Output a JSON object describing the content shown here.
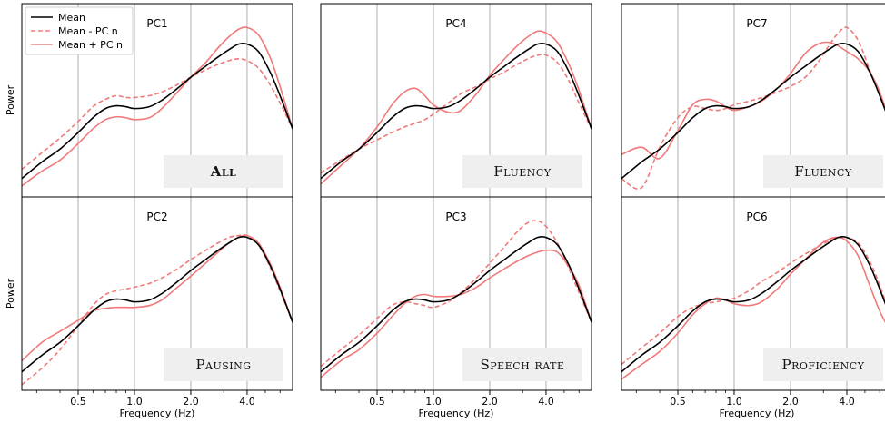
{
  "chart_data": {
    "type": "line",
    "xlabel": "Frequency (Hz)",
    "ylabel": "Power",
    "x_ticks": [
      {
        "value": 0.5,
        "label": "0.5"
      },
      {
        "value": 1.0,
        "label": "1.0"
      },
      {
        "value": 2.0,
        "label": "2.0"
      },
      {
        "value": 4.0,
        "label": "4.0"
      }
    ],
    "x_scale": "log2",
    "xlim": [
      0.25,
      7.0
    ],
    "ylim": [
      0,
      1
    ],
    "grid": "vertical",
    "legend": {
      "position": "top-left",
      "entries": [
        {
          "label": "Mean",
          "color": "#000000",
          "style": "solid"
        },
        {
          "label": "Mean - PC n",
          "color": "#f08080",
          "style": "dashed"
        },
        {
          "label": "Mean + PC n",
          "color": "#f08080",
          "style": "solid"
        }
      ]
    },
    "colors": {
      "mean": "#000000",
      "pc": "#f07a7a",
      "grid": "#b0b0b0",
      "category_box": "#efefef"
    },
    "x": [
      0.25,
      0.32,
      0.4,
      0.5,
      0.6,
      0.7,
      0.8,
      0.9,
      1.0,
      1.2,
      1.4,
      1.7,
      2.0,
      2.4,
      2.8,
      3.2,
      3.6,
      4.0,
      4.6,
      5.3,
      6.0,
      7.0
    ],
    "mean": [
      0.05,
      0.14,
      0.21,
      0.3,
      0.38,
      0.43,
      0.445,
      0.44,
      0.43,
      0.44,
      0.475,
      0.54,
      0.6,
      0.66,
      0.71,
      0.75,
      0.78,
      0.78,
      0.74,
      0.63,
      0.5,
      0.32
    ],
    "panels": [
      {
        "title": "PC1",
        "category": "All",
        "category_bold": true,
        "minus": [
          0.1,
          0.19,
          0.27,
          0.36,
          0.44,
          0.48,
          0.5,
          0.49,
          0.49,
          0.5,
          0.52,
          0.56,
          0.6,
          0.64,
          0.67,
          0.69,
          0.7,
          0.69,
          0.65,
          0.56,
          0.46,
          0.32
        ],
        "plus": [
          0.01,
          0.09,
          0.15,
          0.24,
          0.32,
          0.37,
          0.385,
          0.38,
          0.37,
          0.38,
          0.43,
          0.52,
          0.6,
          0.68,
          0.76,
          0.82,
          0.86,
          0.87,
          0.83,
          0.71,
          0.55,
          0.32
        ]
      },
      {
        "title": "PC4",
        "category": "Fluency",
        "category_bold": false,
        "minus": [
          0.08,
          0.15,
          0.21,
          0.26,
          0.3,
          0.33,
          0.35,
          0.37,
          0.4,
          0.46,
          0.51,
          0.55,
          0.59,
          0.63,
          0.67,
          0.7,
          0.72,
          0.72,
          0.68,
          0.58,
          0.46,
          0.32
        ],
        "plus": [
          0.02,
          0.12,
          0.21,
          0.33,
          0.45,
          0.52,
          0.54,
          0.5,
          0.45,
          0.41,
          0.42,
          0.51,
          0.61,
          0.7,
          0.77,
          0.82,
          0.85,
          0.84,
          0.79,
          0.67,
          0.53,
          0.32
        ]
      },
      {
        "title": "PC7",
        "category": "Fluency",
        "category_bold": false,
        "minus": [
          0.05,
          0.0,
          0.22,
          0.38,
          0.44,
          0.43,
          0.42,
          0.43,
          0.45,
          0.47,
          0.49,
          0.52,
          0.55,
          0.6,
          0.68,
          0.77,
          0.84,
          0.87,
          0.8,
          0.64,
          0.5,
          0.32
        ],
        "plus": [
          0.18,
          0.22,
          0.16,
          0.31,
          0.45,
          0.48,
          0.47,
          0.44,
          0.42,
          0.44,
          0.47,
          0.54,
          0.62,
          0.73,
          0.78,
          0.79,
          0.77,
          0.74,
          0.7,
          0.63,
          0.52,
          0.32
        ]
      },
      {
        "title": "PC2",
        "category": "Pausing",
        "category_bold": false,
        "minus": [
          -0.02,
          0.07,
          0.17,
          0.3,
          0.41,
          0.47,
          0.49,
          0.5,
          0.51,
          0.53,
          0.56,
          0.61,
          0.66,
          0.71,
          0.75,
          0.78,
          0.79,
          0.79,
          0.74,
          0.62,
          0.49,
          0.32
        ],
        "plus": [
          0.11,
          0.21,
          0.27,
          0.33,
          0.38,
          0.395,
          0.4,
          0.4,
          0.4,
          0.41,
          0.44,
          0.51,
          0.57,
          0.64,
          0.7,
          0.75,
          0.78,
          0.79,
          0.75,
          0.64,
          0.51,
          0.32
        ]
      },
      {
        "title": "PC3",
        "category": "Speech rate",
        "category_bold": false,
        "minus": [
          0.08,
          0.17,
          0.25,
          0.34,
          0.41,
          0.43,
          0.42,
          0.41,
          0.4,
          0.43,
          0.48,
          0.56,
          0.64,
          0.73,
          0.81,
          0.86,
          0.87,
          0.84,
          0.75,
          0.61,
          0.48,
          0.32
        ],
        "plus": [
          0.02,
          0.11,
          0.17,
          0.26,
          0.35,
          0.42,
          0.46,
          0.47,
          0.46,
          0.46,
          0.47,
          0.51,
          0.56,
          0.61,
          0.65,
          0.68,
          0.7,
          0.71,
          0.7,
          0.62,
          0.52,
          0.32
        ]
      },
      {
        "title": "PC6",
        "category": "Proficiency",
        "category_bold": false,
        "minus": [
          0.09,
          0.18,
          0.26,
          0.35,
          0.4,
          0.42,
          0.43,
          0.44,
          0.45,
          0.49,
          0.54,
          0.59,
          0.64,
          0.69,
          0.73,
          0.76,
          0.78,
          0.78,
          0.75,
          0.65,
          0.52,
          0.32
        ],
        "plus": [
          0.01,
          0.09,
          0.16,
          0.26,
          0.36,
          0.42,
          0.45,
          0.44,
          0.42,
          0.41,
          0.43,
          0.5,
          0.58,
          0.66,
          0.73,
          0.77,
          0.78,
          0.76,
          0.68,
          0.52,
          0.38,
          0.25
        ]
      }
    ]
  }
}
